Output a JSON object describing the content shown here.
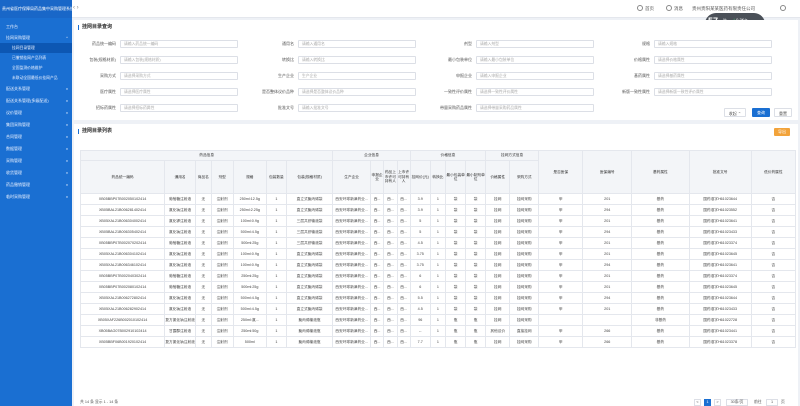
{
  "brand": "贵州省医疗保障局药品集中采购管理系统",
  "topbar": {
    "home": "首页",
    "messages": "消息",
    "org": "贵州贵阳某某医药有限责任公司",
    "user": "张一"
  },
  "notif": {
    "percent": "57",
    "pct_sign": "%",
    "r1": "0.3K/s",
    "r2": "0.3K/s"
  },
  "sidebar": {
    "items": [
      {
        "label": "工作台",
        "arrow": ""
      },
      {
        "label": "挂网采购管理",
        "arrow": "^"
      },
      {
        "label": "挂网目录管理",
        "arrow": ""
      },
      {
        "label": "已撤销挂网产品列表",
        "arrow": ""
      },
      {
        "label": "全国监测价格维护",
        "arrow": ""
      },
      {
        "label": "未联动全国最低价挂网产品",
        "arrow": ""
      },
      {
        "label": "配送关系管理",
        "arrow": "v"
      },
      {
        "label": "配送关系管理(多级配送)",
        "arrow": "v"
      },
      {
        "label": "议价管理",
        "arrow": "v"
      },
      {
        "label": "集团采购管理",
        "arrow": "v"
      },
      {
        "label": "合同管理",
        "arrow": "v"
      },
      {
        "label": "数据管理",
        "arrow": "v"
      },
      {
        "label": "采购管理",
        "arrow": "v"
      },
      {
        "label": "收货管理",
        "arrow": "v"
      },
      {
        "label": "药品撤销管理",
        "arrow": "v"
      },
      {
        "label": "临时采购管理",
        "arrow": "v"
      }
    ]
  },
  "search": {
    "title": "挂网目录查询",
    "fields": [
      {
        "label": "药品统一编码",
        "placeholder": "请输入药品统一编码"
      },
      {
        "label": "通用名",
        "placeholder": "请输入通用名"
      },
      {
        "label": "剂型",
        "placeholder": "请输入剂型"
      },
      {
        "label": "规格",
        "placeholder": "请输入规格"
      },
      {
        "label": "包装(规格材质)",
        "placeholder": "请输入包装(规格材质)"
      },
      {
        "label": "转换比",
        "placeholder": "请输入转换比"
      },
      {
        "label": "最小包装单位",
        "placeholder": "请输入最小包装单位"
      },
      {
        "label": "价格属性",
        "placeholder": "请选择价格属性"
      },
      {
        "label": "采购方式",
        "placeholder": "请选择采购方式"
      },
      {
        "label": "生产企业",
        "placeholder": "生产企业"
      },
      {
        "label": "申报企业",
        "placeholder": "请输入申报企业"
      },
      {
        "label": "基药属性",
        "placeholder": "请选择基药属性"
      },
      {
        "label": "医疗属性",
        "placeholder": "请选择医疗属性"
      },
      {
        "label": "是否整体议价品种",
        "placeholder": "请选择是否整体议价品种"
      },
      {
        "label": "一致性评价属性",
        "placeholder": "请选择一致性评价属性"
      },
      {
        "label": "新版一致性属性",
        "placeholder": "请选择新版一致性评价属性"
      },
      {
        "label": "招标药属性",
        "placeholder": "请选择招标药属性"
      },
      {
        "label": "批准文号",
        "placeholder": "请输入批准文号"
      },
      {
        "label": "带量采购药品属性",
        "placeholder": "请选择带量采购药品属性"
      }
    ],
    "collapse": "收起",
    "query": "查询",
    "reset": "重置"
  },
  "list": {
    "title": "挂网目录列表",
    "export": "导出",
    "group_headers": {
      "drug": "药品信息",
      "company": "企业信息",
      "price": "价格信息",
      "purchase": "挂网方式信息"
    },
    "headers": [
      "药品统一编码",
      "通用名",
      "商品名",
      "剂型",
      "规格",
      "包装数量",
      "包装(规格材质)",
      "生产企业",
      "申报企业",
      "药品上市许可持有人",
      "上市许可持有人",
      "挂网价(元)",
      "转换比",
      "最小包装单位",
      "最小制剂单位",
      "价格属性",
      "采购方式",
      "是否医保",
      "医保编号",
      "基药属性",
      "批准文号",
      "低价药属性"
    ],
    "rows": [
      [
        "XB05BBP07B002050102414",
        "葡萄糖注射液",
        "无",
        "注射剂",
        "250ml:12.5g",
        "1",
        "直立式聚丙烯袋",
        "西安环球新津药业...",
        "西...",
        "西...",
        "西...",
        "3.9",
        "1",
        "袋",
        "袋",
        "挂网",
        "挂网采购",
        "甲",
        "201",
        "基药",
        "国药准字H61023644",
        "否"
      ],
      [
        "XB05BAL21B006281402414",
        "氯化钠注射液",
        "无",
        "注射剂",
        "250ml:2.25g",
        "1",
        "直立式聚丙烯袋",
        "西安环球新津药业...",
        "西...",
        "西...",
        "西...",
        "3.9",
        "1",
        "袋",
        "袋",
        "挂网",
        "挂网采购",
        "甲",
        "294",
        "基药",
        "国药准字H61023552",
        "否"
      ],
      [
        "XB05XAL21B006304002414",
        "氯化钾注射液",
        "无",
        "注射剂",
        "100ml:0.9g",
        "1",
        "三层共挤输液袋",
        "西安环球新津药业...",
        "西...",
        "西...",
        "西...",
        "5",
        "1",
        "袋",
        "袋",
        "挂网",
        "挂网采购",
        "甲",
        "201",
        "基药",
        "国药准字H61023641",
        "否"
      ],
      [
        "XB05BAL21B006305402414",
        "氯化钠注射液",
        "无",
        "注射剂",
        "500ml:4.5g",
        "1",
        "三层共挤输液袋",
        "西安环球新津药业...",
        "西...",
        "西...",
        "西...",
        "5",
        "1",
        "袋",
        "袋",
        "挂网",
        "挂网采购",
        "甲",
        "294",
        "基药",
        "国药准字H61023433",
        "否"
      ],
      [
        "XB05BBP07B002070202414",
        "葡萄糖注射液",
        "无",
        "注射剂",
        "500ml:25g",
        "1",
        "三层共挤输液袋",
        "西安环球新津药业...",
        "西...",
        "西...",
        "西...",
        "4.5",
        "1",
        "袋",
        "袋",
        "挂网",
        "挂网采购",
        "甲",
        "201",
        "基药",
        "国药准字H61023374",
        "否"
      ],
      [
        "XB05XAL21B006304102414",
        "氯化钠注射液",
        "无",
        "注射剂",
        "100ml:0.9g",
        "1",
        "直立式聚丙烯袋",
        "西安环球新津药业...",
        "西...",
        "西...",
        "西...",
        "3.75",
        "1",
        "袋",
        "袋",
        "挂网",
        "挂网采购",
        "甲",
        "201",
        "基药",
        "国药准字H61023645",
        "否"
      ],
      [
        "XB05XAL21B006346102414",
        "氯化钠注射液",
        "无",
        "注射剂",
        "100ml:0.9g",
        "1",
        "直立式聚丙烯袋",
        "西安环球新津药业...",
        "西...",
        "西...",
        "西...",
        "3.75",
        "1",
        "袋",
        "袋",
        "挂网",
        "挂网采购",
        "甲",
        "294",
        "基药",
        "国药准字H61023641",
        "否"
      ],
      [
        "XB05BBP07B002040302414",
        "葡萄糖注射液",
        "无",
        "注射剂",
        "250ml:25g",
        "1",
        "直立式聚丙烯袋",
        "西安环球新津药业...",
        "西...",
        "西...",
        "西...",
        "6",
        "1",
        "袋",
        "袋",
        "挂网",
        "挂网采购",
        "甲",
        "201",
        "基药",
        "国药准字H61023374",
        "否"
      ],
      [
        "XB05BBP07B002080102414",
        "葡萄糖注射液",
        "无",
        "注射剂",
        "500ml:25g",
        "1",
        "直立式聚丙烯袋",
        "西安环球新津药业...",
        "西...",
        "西...",
        "西...",
        "6",
        "1",
        "袋",
        "袋",
        "挂网",
        "挂网采购",
        "甲",
        "201",
        "基药",
        "国药准字H61023645",
        "否"
      ],
      [
        "XB05XAL21B006272802414",
        "氯化钠注射液",
        "无",
        "注射剂",
        "500ml:4.5g",
        "1",
        "直立式聚丙烯袋",
        "西安环球新津药业...",
        "西...",
        "西...",
        "西...",
        "5.5",
        "1",
        "袋",
        "袋",
        "挂网",
        "挂网采购",
        "甲",
        "294",
        "基药",
        "国药准字H61023644",
        "否"
      ],
      [
        "XB05XAL21B006282902414",
        "氯化钠注射液",
        "无",
        "注射剂",
        "500ml:4.5g",
        "1",
        "直立式聚丙烯袋",
        "西安环球新津药业...",
        "西...",
        "西...",
        "西...",
        "4.5",
        "1",
        "袋",
        "袋",
        "挂网",
        "挂网采购",
        "甲",
        "201",
        "基药",
        "国药准字H61023433",
        "否"
      ],
      [
        "XB05XAF226B002010102414",
        "复方氯化钠注射液",
        "无",
        "注射剂",
        "250ml:氯...",
        "1",
        "聚丙烯输液瓶",
        "西安环球新津药业...",
        "西...",
        "西...",
        "西...",
        "96",
        "1",
        "瓶",
        "瓶",
        "挂网",
        "挂网采购",
        "",
        "",
        "非基药",
        "国药准字H61022728",
        "否"
      ],
      [
        "XB05BAG07B002910102414",
        "甘露醇注射液",
        "无",
        "注射剂",
        "250ml:50g",
        "1",
        "聚丙烯输液瓶",
        "西安环球新津药业...",
        "西...",
        "西...",
        "西...",
        "--",
        "1",
        "瓶",
        "瓶",
        "其他议价",
        "直接挂网",
        "甲",
        "266",
        "基药",
        "国药准字H61023441",
        "否"
      ],
      [
        "XB05BBF06B001920102414",
        "复方氯化钠注射液",
        "无",
        "注射剂",
        "500ml",
        "1",
        "聚丙烯输液瓶",
        "西安环球新津药业...",
        "西...",
        "西...",
        "西...",
        "7.7",
        "1",
        "瓶",
        "瓶",
        "挂网",
        "挂网采购",
        "甲",
        "266",
        "基药",
        "国药准字H61023378",
        "否"
      ]
    ]
  },
  "pager": {
    "summary": "共 14 条  显示 1 - 14 条",
    "prev": "<",
    "page": "1",
    "next": ">",
    "size": "30条/页",
    "goto_label": "前往",
    "goto_value": "1",
    "page_unit": "页"
  }
}
